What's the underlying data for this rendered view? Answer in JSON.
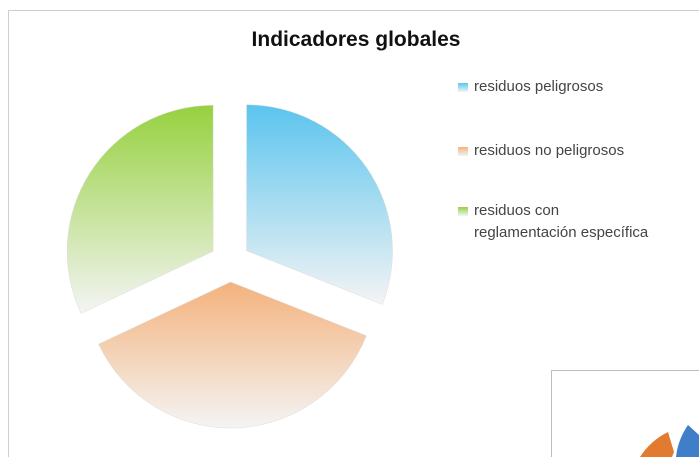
{
  "chart_data": {
    "type": "pie",
    "title": "Indicadores globales",
    "categories": [
      "residuos peligrosos",
      "residuos no peligrosos",
      "residuos con\nreglamentación específica"
    ],
    "values": [
      31,
      37,
      32
    ],
    "colors": [
      "#5bc4ee",
      "#f4b27c",
      "#96d13f"
    ],
    "legend": "right",
    "exploded": true
  }
}
